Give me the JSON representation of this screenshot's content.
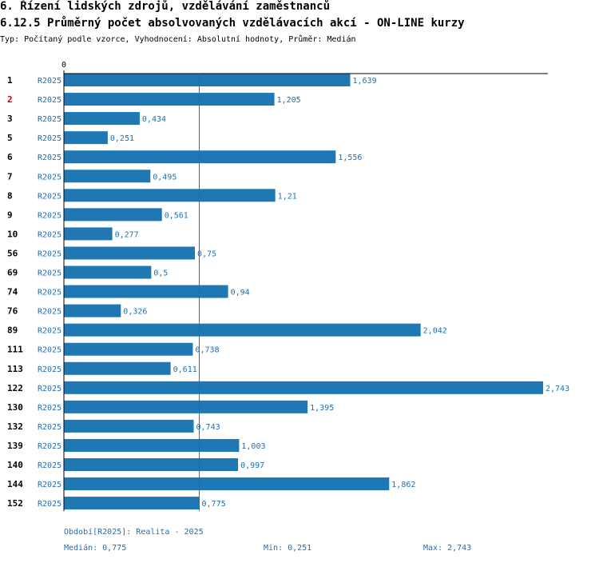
{
  "header": {
    "title": "6. Řízení lidských zdrojů, vzdělávání zaměstnanců",
    "subtitle": "6.12.5 Průměrný počet absolvovaných vzdělávacích akcí - ON-LINE kurzy",
    "type_line": "Typ: Počítaný podle vzorce, Vyhodnocení: Absolutní hodnoty, Průměr: Medián"
  },
  "colors": {
    "bar": "#1f77b4",
    "label": "#1f6fb4",
    "highlight": "#cc0000",
    "axis": "#000000"
  },
  "chart_data": {
    "type": "bar",
    "orientation": "horizontal",
    "axis_zero_label": "0",
    "series_name": "R2025",
    "categories": [
      "1",
      "2",
      "3",
      "5",
      "6",
      "7",
      "8",
      "9",
      "10",
      "56",
      "69",
      "74",
      "76",
      "89",
      "111",
      "113",
      "122",
      "130",
      "132",
      "139",
      "140",
      "144",
      "152"
    ],
    "highlighted_category": "2",
    "values": [
      1.639,
      1.205,
      0.434,
      0.251,
      1.556,
      0.495,
      1.21,
      0.561,
      0.277,
      0.75,
      0.5,
      0.94,
      0.326,
      2.042,
      0.738,
      0.611,
      2.743,
      1.395,
      0.743,
      1.003,
      0.997,
      1.862,
      0.775
    ],
    "value_labels": [
      "1,639",
      "1,205",
      "0,434",
      "0,251",
      "1,556",
      "0,495",
      "1,21",
      "0,561",
      "0,277",
      "0,75",
      "0,5",
      "0,94",
      "0,326",
      "2,042",
      "0,738",
      "0,611",
      "2,743",
      "1,395",
      "0,743",
      "1,003",
      "0,997",
      "1,862",
      "0,775"
    ],
    "median": 0.775,
    "xlim": [
      0,
      2.743
    ]
  },
  "footer": {
    "period": "Období[R2025]: Realita - 2025",
    "median": "Medián: 0,775",
    "min": "Min: 0,251",
    "max": "Max: 2,743"
  }
}
